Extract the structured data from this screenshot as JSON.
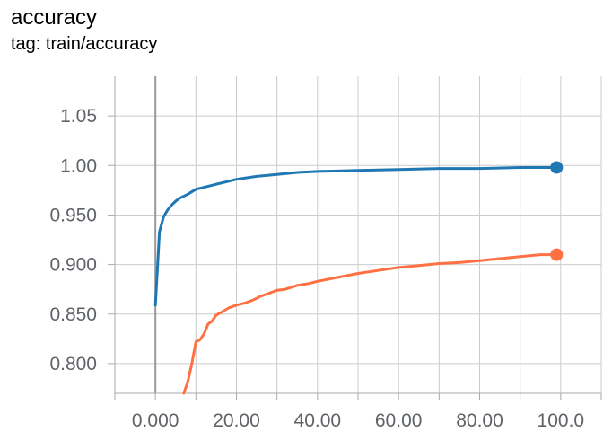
{
  "header": {
    "title": "accuracy",
    "tag": "tag: train/accuracy"
  },
  "chart_data": {
    "type": "line",
    "title": "accuracy",
    "subtitle": "tag: train/accuracy",
    "xlabel": "",
    "ylabel": "",
    "xlim": [
      -10,
      110
    ],
    "ylim": [
      0.77,
      1.09
    ],
    "x_ticks": [
      0,
      20,
      40,
      60,
      80,
      100
    ],
    "x_tick_labels": [
      "0.000",
      "20.00",
      "40.00",
      "60.00",
      "80.00",
      "100.0"
    ],
    "y_ticks": [
      0.8,
      0.85,
      0.9,
      0.95,
      1.0,
      1.05
    ],
    "y_tick_labels": [
      "0.800",
      "0.850",
      "0.900",
      "0.950",
      "1.00",
      "1.05"
    ],
    "grid": true,
    "series": [
      {
        "color": "#1f77b4",
        "x": [
          0,
          1,
          2,
          3,
          4,
          5,
          6,
          8,
          10,
          12,
          15,
          18,
          20,
          25,
          30,
          35,
          40,
          50,
          60,
          70,
          80,
          90,
          99
        ],
        "y": [
          0.859,
          0.933,
          0.948,
          0.955,
          0.96,
          0.964,
          0.967,
          0.971,
          0.976,
          0.978,
          0.981,
          0.984,
          0.986,
          0.989,
          0.991,
          0.993,
          0.994,
          0.995,
          0.996,
          0.997,
          0.997,
          0.998,
          0.998
        ]
      },
      {
        "color": "#ff7043",
        "x": [
          7,
          8,
          9,
          10,
          11,
          12,
          13,
          14,
          15,
          16,
          18,
          20,
          22,
          24,
          26,
          28,
          30,
          32,
          35,
          38,
          40,
          45,
          50,
          55,
          60,
          65,
          70,
          75,
          80,
          85,
          90,
          95,
          99
        ],
        "y": [
          0.77,
          0.782,
          0.8,
          0.822,
          0.824,
          0.83,
          0.84,
          0.843,
          0.849,
          0.851,
          0.856,
          0.859,
          0.861,
          0.864,
          0.868,
          0.871,
          0.874,
          0.875,
          0.879,
          0.881,
          0.883,
          0.887,
          0.891,
          0.894,
          0.897,
          0.899,
          0.901,
          0.902,
          0.904,
          0.906,
          0.908,
          0.91,
          0.91
        ]
      }
    ]
  }
}
